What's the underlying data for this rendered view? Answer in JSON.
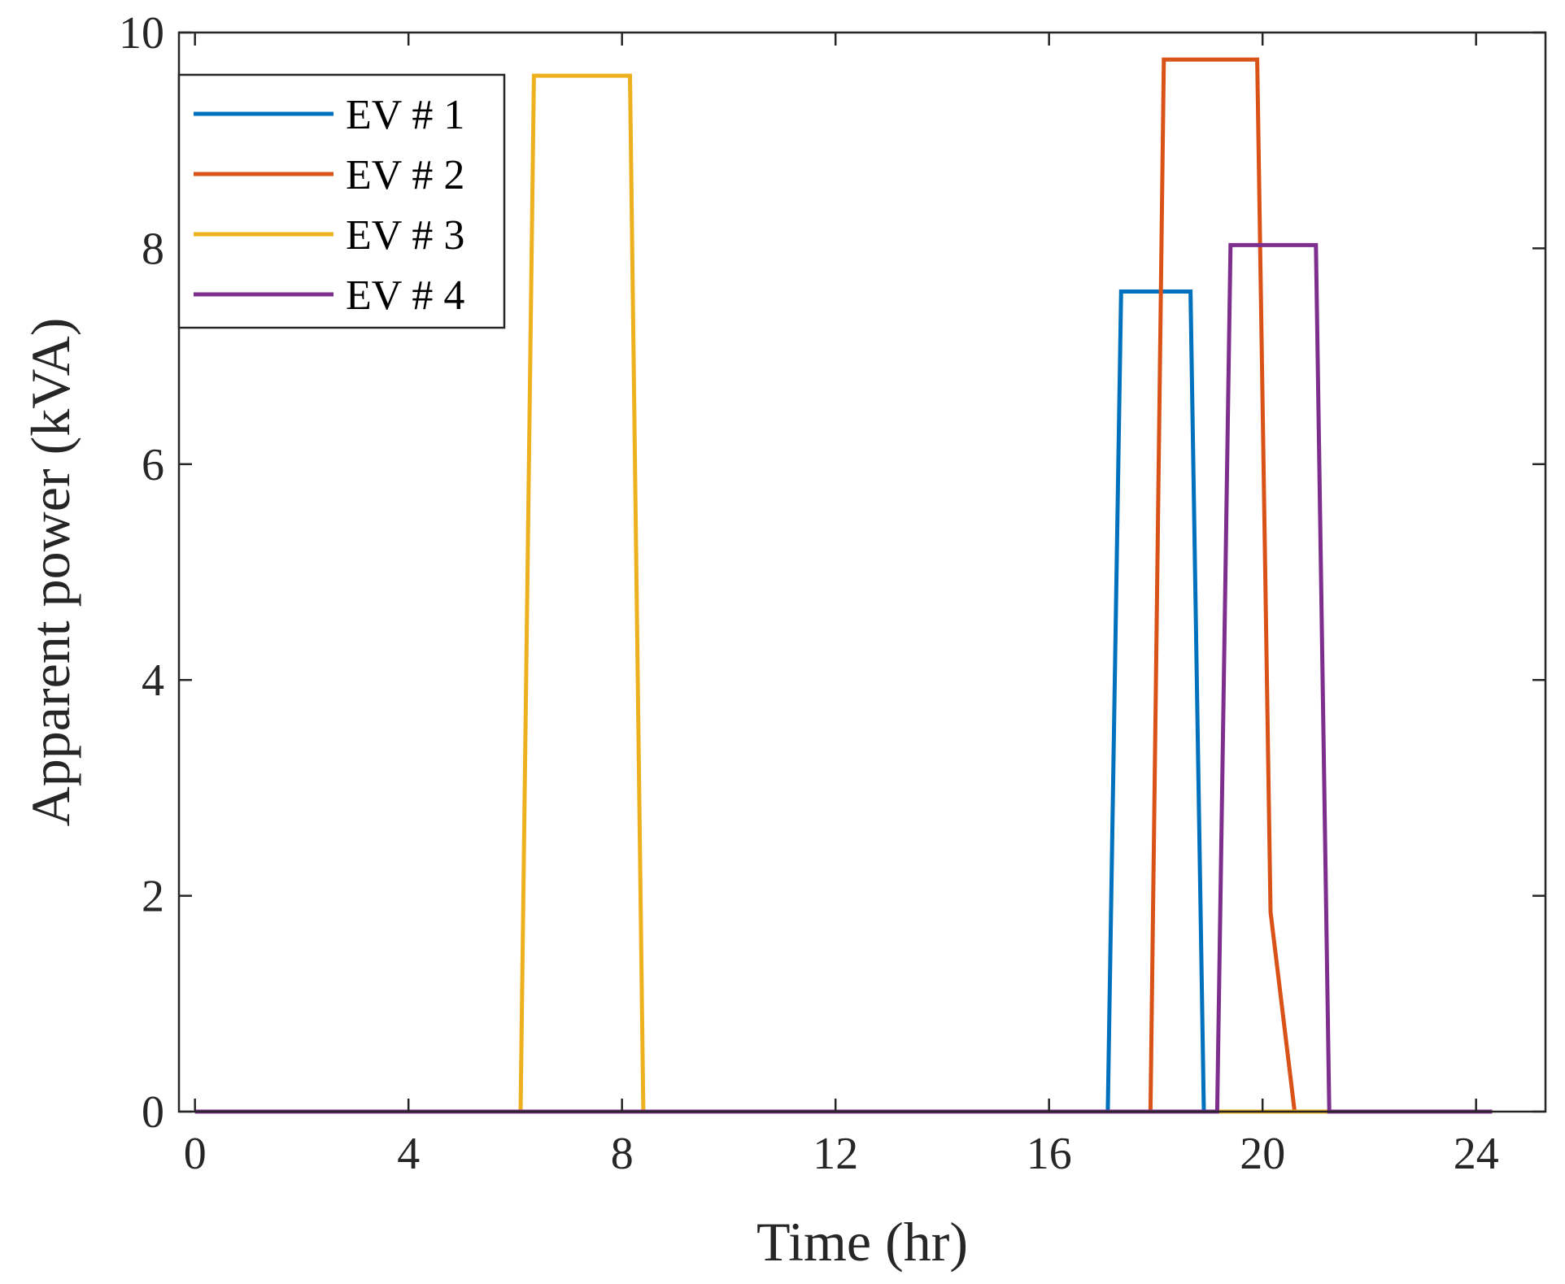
{
  "chart_data": {
    "type": "line",
    "title": "",
    "xlabel": "Time (hr)",
    "ylabel": "Apparent power (kVA)",
    "xlim": [
      -0.3,
      25.3
    ],
    "ylim": [
      0,
      10
    ],
    "xticks": [
      0,
      4,
      8,
      12,
      16,
      20,
      24
    ],
    "yticks": [
      0,
      2,
      4,
      6,
      8,
      10
    ],
    "grid": false,
    "legend_position": "top-left",
    "series": [
      {
        "name": "EV # 1",
        "color": "#0072BD",
        "x": [
          0,
          17.1,
          17.35,
          18.65,
          18.9,
          24.3
        ],
        "y": [
          0,
          0,
          7.6,
          7.6,
          0,
          0
        ]
      },
      {
        "name": "EV # 2",
        "color": "#D95319",
        "x": [
          0,
          17.9,
          18.15,
          19.9,
          20.15,
          20.6,
          24.3
        ],
        "y": [
          0,
          0,
          9.75,
          9.75,
          1.85,
          0,
          0
        ]
      },
      {
        "name": "EV # 3",
        "color": "#EDB120",
        "x": [
          0,
          6.1,
          6.35,
          8.15,
          8.4,
          24.3
        ],
        "y": [
          0,
          0,
          9.6,
          9.6,
          0,
          0
        ]
      },
      {
        "name": "EV # 4",
        "color": "#7E2F8E",
        "x": [
          0,
          19.15,
          19.4,
          21.0,
          21.25,
          24.3
        ],
        "y": [
          0,
          0,
          8.03,
          8.03,
          0,
          0
        ]
      }
    ]
  }
}
